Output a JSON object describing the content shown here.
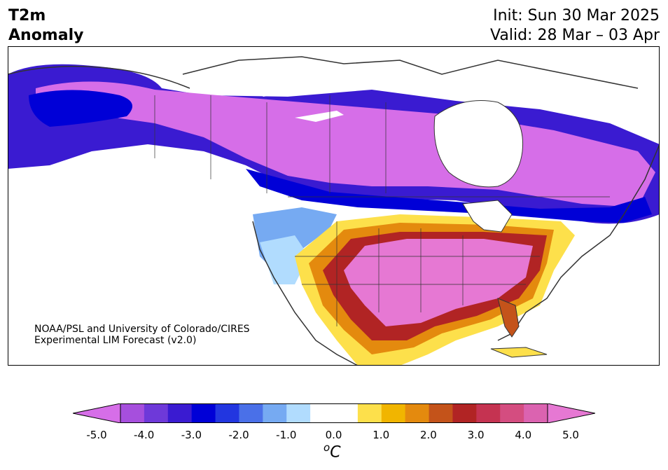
{
  "title": {
    "variable": "T2m",
    "subtitle": "Anomaly",
    "init": "Init: Sun 30 Mar 2025",
    "valid": "Valid: 28 Mar – 03 Apr"
  },
  "credit": {
    "line1": "NOAA/PSL and University of Colorado/CIRES",
    "line2": "Experimental LIM Forecast (v2.0)"
  },
  "colorbar": {
    "ticks": [
      "-5.0",
      "-4.0",
      "-3.0",
      "-2.0",
      "-1.0",
      "0.0",
      "1.0",
      "2.0",
      "3.0",
      "4.0",
      "5.0"
    ],
    "unit_sup": "o",
    "unit": "C",
    "colors": [
      "#d66ee8",
      "#a64fdd",
      "#6e39d9",
      "#3a1bd1",
      "#0000d7",
      "#2236e0",
      "#4a70e8",
      "#76aaf2",
      "#b1dcfe",
      "#ffffff",
      "#ffffff",
      "#fde04b",
      "#f1b500",
      "#e48a0e",
      "#c4531a",
      "#b12424",
      "#c53351",
      "#d44d80",
      "#db63b0",
      "#e678d3"
    ]
  },
  "map": {
    "region": "North America",
    "colors": {
      "ocean": "#ffffff",
      "coast": "#333333",
      "strong_cold": "#d66ee8",
      "cold_band": "#0000d7",
      "warm_strong": "#e678d3"
    }
  }
}
